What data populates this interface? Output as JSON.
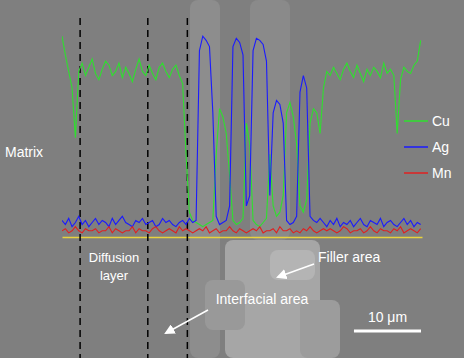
{
  "chart_data": {
    "type": "line",
    "tick_labels": false,
    "grid": false,
    "legend": "right",
    "xlim": [
      0,
      53.7
    ],
    "ylim": [
      0,
      100
    ],
    "x": [
      0,
      0.5,
      1,
      1.5,
      2,
      2.5,
      3,
      3.5,
      4,
      4.5,
      5,
      5.5,
      6,
      6.5,
      7,
      7.5,
      8,
      8.5,
      9,
      9.5,
      10,
      10.5,
      11,
      11.5,
      12,
      12.5,
      13,
      13.5,
      14,
      14.5,
      15,
      15.5,
      16,
      16.5,
      17,
      17.5,
      18,
      18.5,
      19,
      19.5,
      20,
      20.5,
      21,
      21.5,
      22,
      22.5,
      23,
      23.5,
      24,
      24.5,
      25,
      25.5,
      26,
      26.5,
      27,
      27.5,
      28,
      28.5,
      29,
      29.5,
      30,
      30.5,
      31,
      31.5,
      32,
      32.5,
      33,
      33.5,
      34,
      34.5,
      35,
      35.5,
      36,
      36.5,
      37,
      37.5,
      38,
      38.5,
      39,
      39.5,
      40,
      40.5,
      41,
      41.5,
      42,
      42.5,
      43,
      43.5,
      44,
      44.5,
      45,
      45.5,
      46,
      46.5,
      47,
      47.5,
      48,
      48.5,
      49,
      49.5,
      50,
      50.5,
      51,
      51.5,
      52,
      52.5,
      53,
      53.5
    ],
    "series": [
      {
        "name": "Cu",
        "color": "#2ee02e",
        "values": [
          97,
          88,
          80,
          72,
          48,
          80,
          84,
          78,
          82,
          86,
          79,
          76,
          81,
          85,
          83,
          78,
          80,
          84,
          77,
          82,
          79,
          75,
          81,
          86,
          80,
          78,
          83,
          79,
          76,
          82,
          84,
          80,
          77,
          81,
          83,
          78,
          74,
          40,
          12,
          8,
          7,
          6,
          5,
          6,
          7,
          8,
          40,
          62,
          58,
          50,
          30,
          8,
          6,
          7,
          9,
          55,
          45,
          8,
          6,
          5,
          7,
          9,
          40,
          15,
          10,
          12,
          20,
          60,
          65,
          58,
          45,
          15,
          12,
          18,
          55,
          62,
          60,
          50,
          72,
          80,
          78,
          82,
          79,
          76,
          81,
          84,
          80,
          77,
          83,
          79,
          75,
          81,
          78,
          82,
          80,
          77,
          84,
          79,
          81,
          78,
          50,
          76,
          82,
          80,
          79,
          83,
          85,
          95
        ]
      },
      {
        "name": "Ag",
        "color": "#1a1aff",
        "values": [
          8,
          6,
          9,
          5,
          7,
          10,
          6,
          8,
          5,
          7,
          9,
          6,
          8,
          7,
          5,
          9,
          6,
          8,
          10,
          7,
          6,
          5,
          8,
          7,
          9,
          6,
          7,
          8,
          5,
          6,
          9,
          7,
          8,
          6,
          5,
          7,
          8,
          6,
          9,
          7,
          8,
          90,
          97,
          95,
          92,
          60,
          10,
          6,
          7,
          8,
          15,
          92,
          96,
          94,
          88,
          15,
          20,
          90,
          96,
          95,
          93,
          85,
          20,
          60,
          66,
          64,
          55,
          8,
          6,
          7,
          10,
          70,
          78,
          72,
          10,
          8,
          7,
          9,
          7,
          5,
          8,
          6,
          9,
          5,
          7,
          6,
          8,
          5,
          7,
          9,
          6,
          5,
          8,
          7,
          6,
          9,
          5,
          7,
          8,
          6,
          5,
          7,
          9,
          6,
          8,
          5,
          7,
          6
        ]
      },
      {
        "name": "Mn",
        "color": "#e02020",
        "values": [
          3,
          4,
          2,
          3,
          5,
          3,
          2,
          4,
          3,
          3,
          4,
          2,
          3,
          3,
          5,
          2,
          4,
          3,
          2,
          3,
          3,
          5,
          2,
          4,
          3,
          3,
          2,
          4,
          5,
          3,
          2,
          3,
          4,
          3,
          2,
          5,
          3,
          4,
          3,
          2,
          3,
          4,
          3,
          5,
          2,
          3,
          4,
          2,
          3,
          3,
          5,
          3,
          2,
          4,
          3,
          2,
          3,
          4,
          3,
          5,
          2,
          3,
          3,
          4,
          2,
          5,
          3,
          3,
          4,
          2,
          3,
          2,
          4,
          3,
          5,
          3,
          2,
          3,
          4,
          3,
          4,
          3,
          2,
          3,
          5,
          4,
          2,
          3,
          3,
          4,
          2,
          3,
          5,
          3,
          2,
          4,
          3,
          3,
          2,
          4,
          3,
          5,
          2,
          3,
          4,
          3,
          2,
          4
        ]
      }
    ],
    "boundaries": [
      2.7,
      12.8,
      18.7
    ],
    "annotations": [
      {
        "text": "Matrix"
      },
      {
        "text": "Diffusion layer"
      },
      {
        "text": "Filler area"
      },
      {
        "text": "Interfacial area"
      }
    ],
    "scale_bar": {
      "label": "10 μm",
      "length": 10
    }
  }
}
